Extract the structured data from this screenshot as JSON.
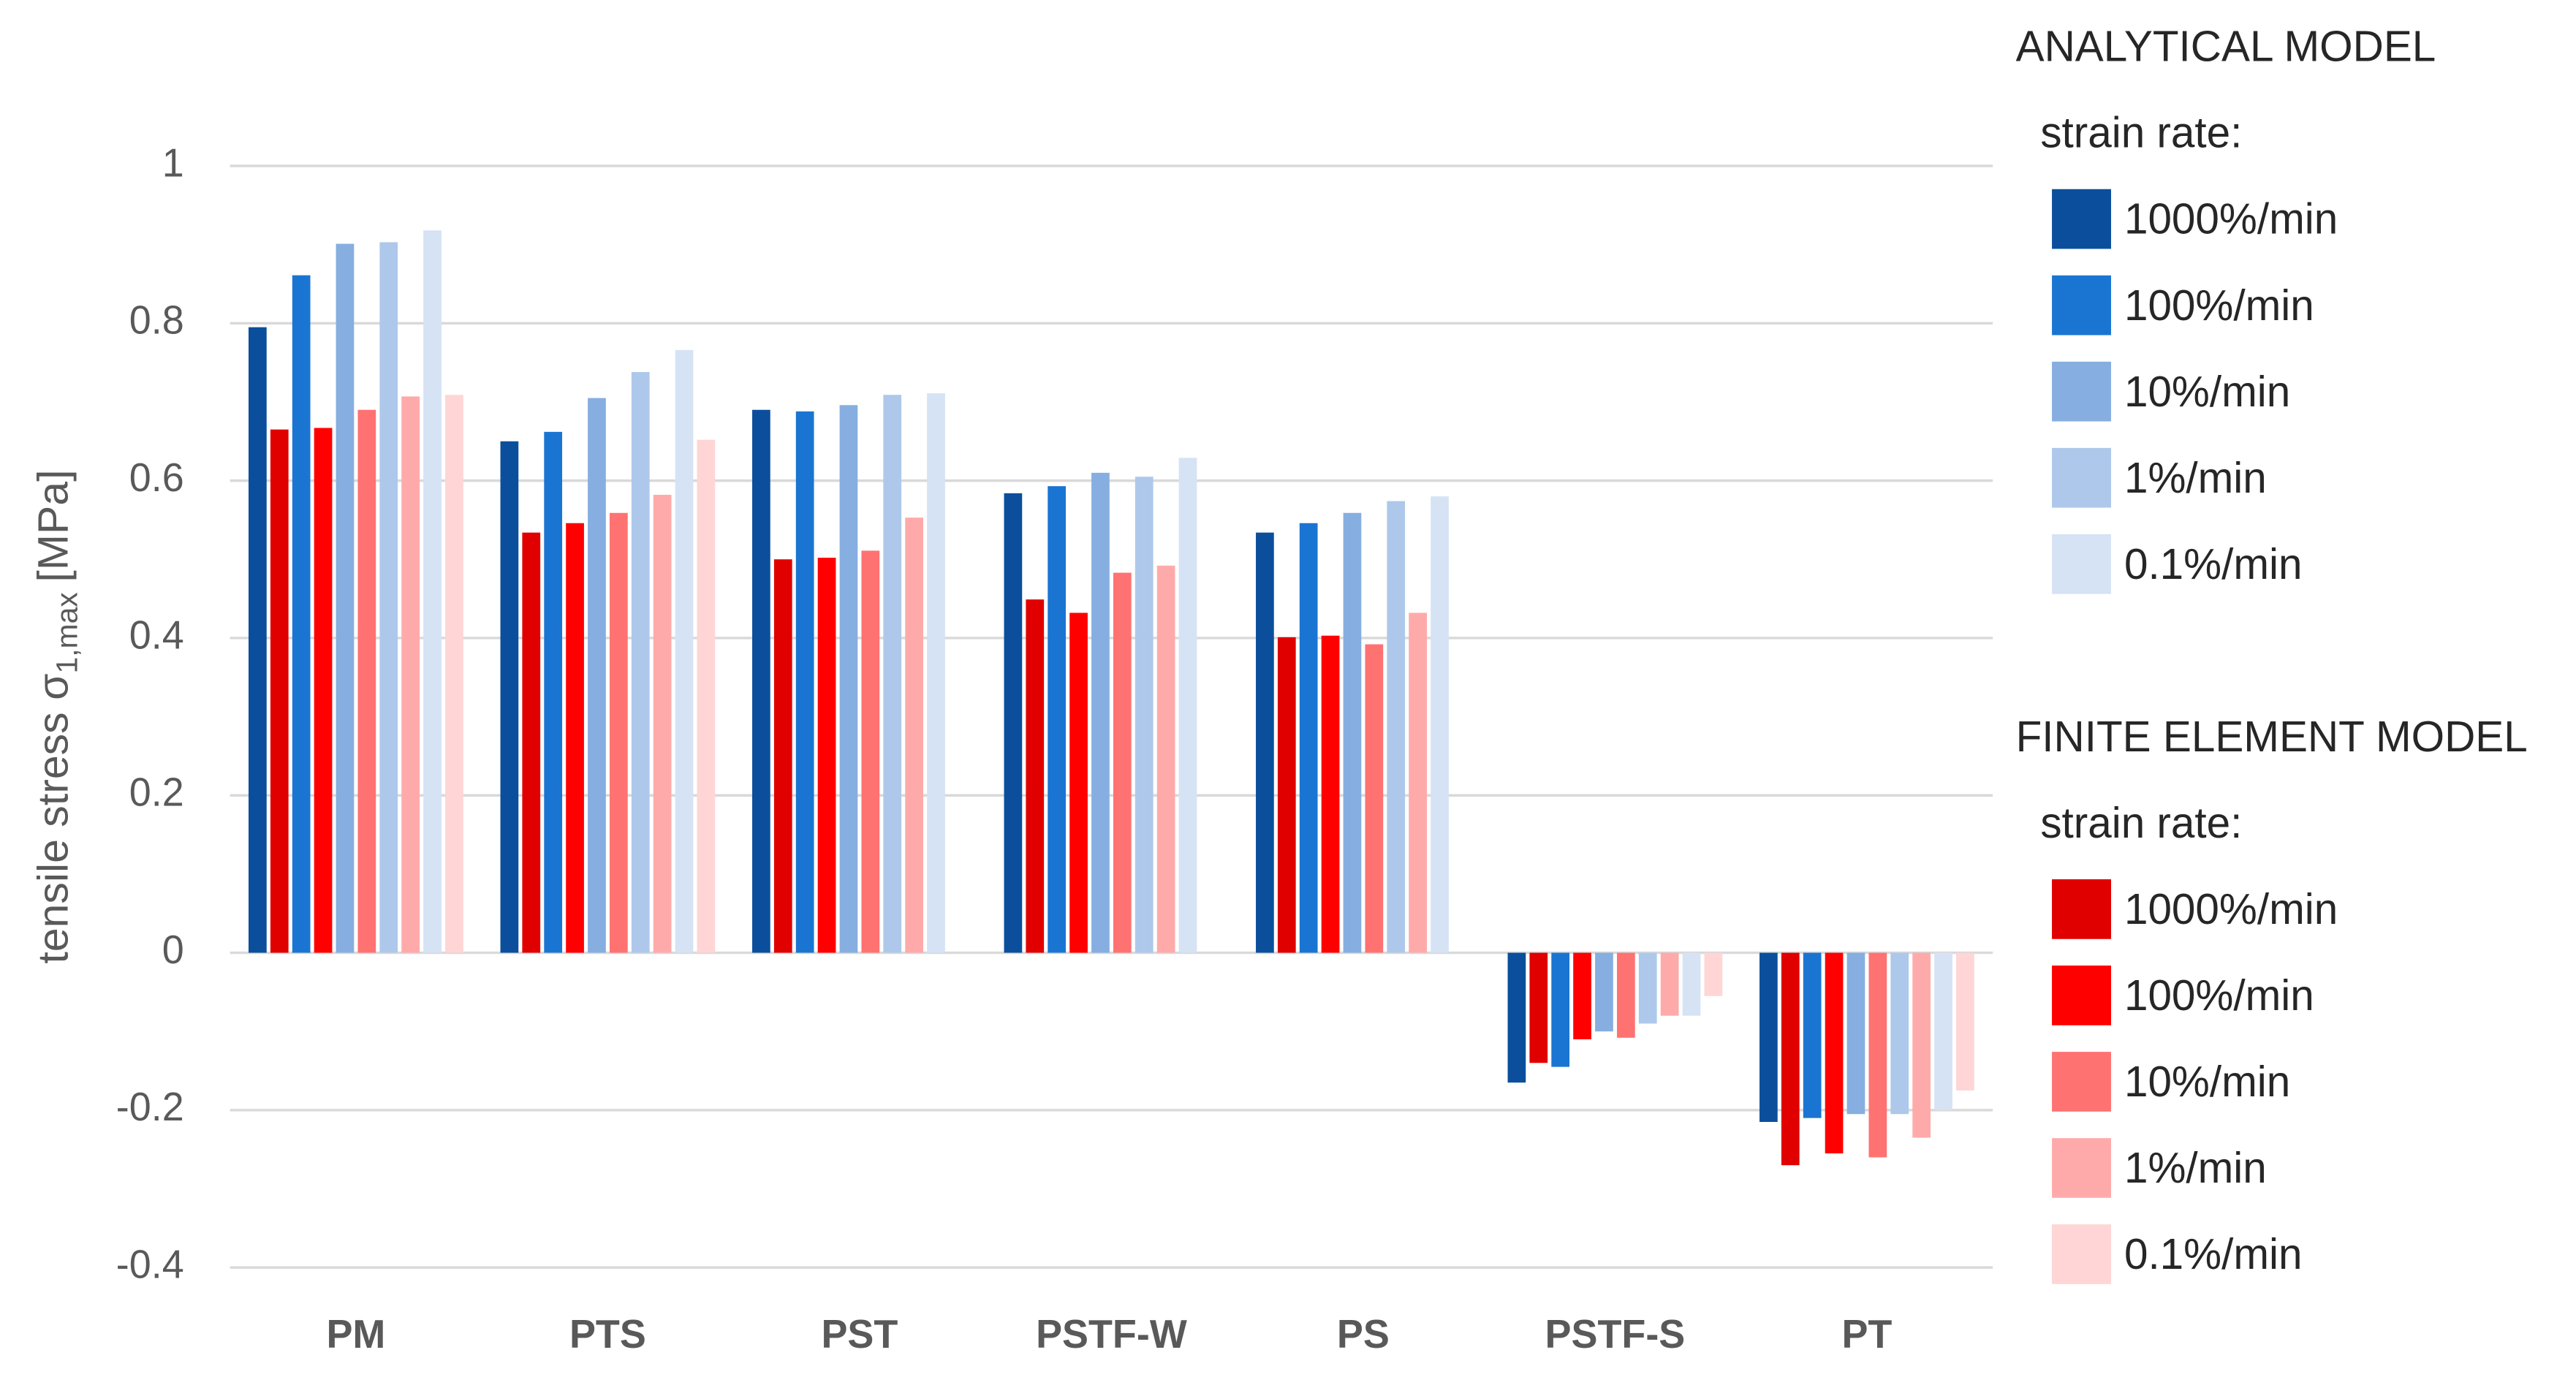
{
  "chart_data": {
    "type": "bar",
    "y_label": "tensile stress σ",
    "y_label_sub": "1,max",
    "y_label_unit": "[MPa]",
    "categories": [
      "PM",
      "PTS",
      "PST",
      "PSTF-W",
      "PS",
      "PSTF-S",
      "PT"
    ],
    "ylim": [
      -0.4,
      1
    ],
    "yticks": [
      -0.4,
      -0.2,
      0,
      0.2,
      0.4,
      0.6,
      0.8,
      1
    ],
    "grid": true,
    "series_groups": [
      {
        "title": "ANALYTICAL MODEL",
        "subtitle": "strain rate:",
        "series": [
          {
            "name": "1000%/min",
            "color": "#0b4f9c",
            "values": [
              0.795,
              0.65,
              0.69,
              0.584,
              0.534,
              -0.165,
              -0.215
            ]
          },
          {
            "name": "100%/min",
            "color": "#1a75d2",
            "values": [
              0.861,
              0.662,
              0.688,
              0.593,
              0.546,
              -0.145,
              -0.21
            ]
          },
          {
            "name": "10%/min",
            "color": "#86aee0",
            "values": [
              0.901,
              0.705,
              0.696,
              0.61,
              0.559,
              -0.1,
              -0.205
            ]
          },
          {
            "name": "1%/min",
            "color": "#adc8ea",
            "values": [
              0.903,
              0.738,
              0.709,
              0.605,
              0.574,
              -0.09,
              -0.205
            ]
          },
          {
            "name": "0.1%/min",
            "color": "#d6e3f5",
            "values": [
              0.918,
              0.766,
              0.711,
              0.629,
              0.58,
              -0.08,
              -0.2
            ]
          }
        ]
      },
      {
        "title": "FINITE ELEMENT MODEL",
        "subtitle": "strain rate:",
        "series": [
          {
            "name": "1000%/min",
            "color": "#e00000",
            "values": [
              0.665,
              0.534,
              0.5,
              0.449,
              0.401,
              -0.14,
              -0.27
            ]
          },
          {
            "name": "100%/min",
            "color": "#ff0000",
            "values": [
              0.667,
              0.546,
              0.502,
              0.432,
              0.403,
              -0.11,
              -0.255
            ]
          },
          {
            "name": "10%/min",
            "color": "#ff7272",
            "values": [
              0.69,
              0.559,
              0.511,
              0.483,
              0.392,
              -0.108,
              -0.26
            ]
          },
          {
            "name": "1%/min",
            "color": "#ffaaaa",
            "values": [
              0.707,
              0.582,
              0.553,
              0.492,
              0.432,
              -0.08,
              -0.235
            ]
          },
          {
            "name": "0.1%/min",
            "color": "#ffd5d5",
            "values": [
              0.709,
              0.652,
              null,
              null,
              null,
              -0.055,
              -0.175
            ]
          }
        ]
      }
    ]
  }
}
